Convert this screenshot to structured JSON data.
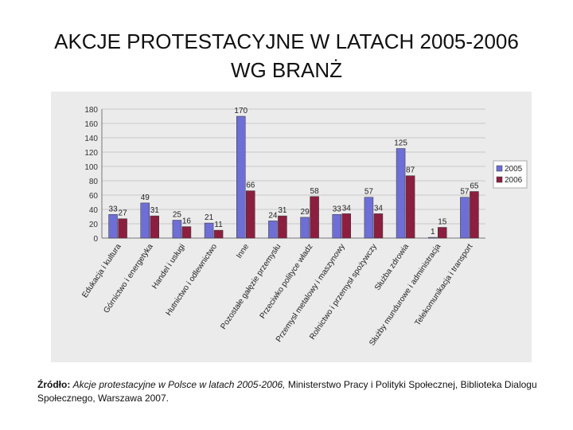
{
  "title_line1": "AKCJE PROTESTACYJNE W LATACH 2005-2006",
  "title_line2": "WG BRANŻ",
  "source": {
    "label": "Źródło:",
    "work": "Akcje protestacyjne w Polsce w latach 2005-2006,",
    "publisher": "Ministerstwo Pracy i Polityki Społecznej, Biblioteka Dialogu Społecznego, Warszawa 2007."
  },
  "colors": {
    "s2005": "#6e6ed6",
    "s2006": "#8c1f40",
    "plot_bg": "#ebebeb",
    "grid": "#c8c8c8"
  },
  "chart_data": {
    "type": "bar",
    "title": "",
    "xlabel": "",
    "ylabel": "",
    "ylim": [
      0,
      180
    ],
    "yticks": [
      0,
      20,
      40,
      60,
      80,
      100,
      120,
      140,
      160,
      180
    ],
    "legend_position": "right",
    "categories": [
      "Edukacja i kultura",
      "Górnictwo i energetyka",
      "Handel i usługi",
      "Hutnictwo i odlewnictwo",
      "Inne",
      "Pozostałe gałęzie przemysłu",
      "Przeciwko polityce władz",
      "Przemysł metalowy i maszynowy",
      "Rolnictwo i przemysł spożywczy",
      "Służba zdrowia",
      "Służby mundurowe i administracja",
      "Telekomunikacja i transport"
    ],
    "series": [
      {
        "name": "2005",
        "values": [
          33,
          49,
          25,
          21,
          170,
          24,
          29,
          33,
          57,
          125,
          1,
          57
        ]
      },
      {
        "name": "2006",
        "values": [
          27,
          31,
          16,
          11,
          66,
          31,
          58,
          34,
          34,
          87,
          15,
          65
        ]
      }
    ]
  }
}
